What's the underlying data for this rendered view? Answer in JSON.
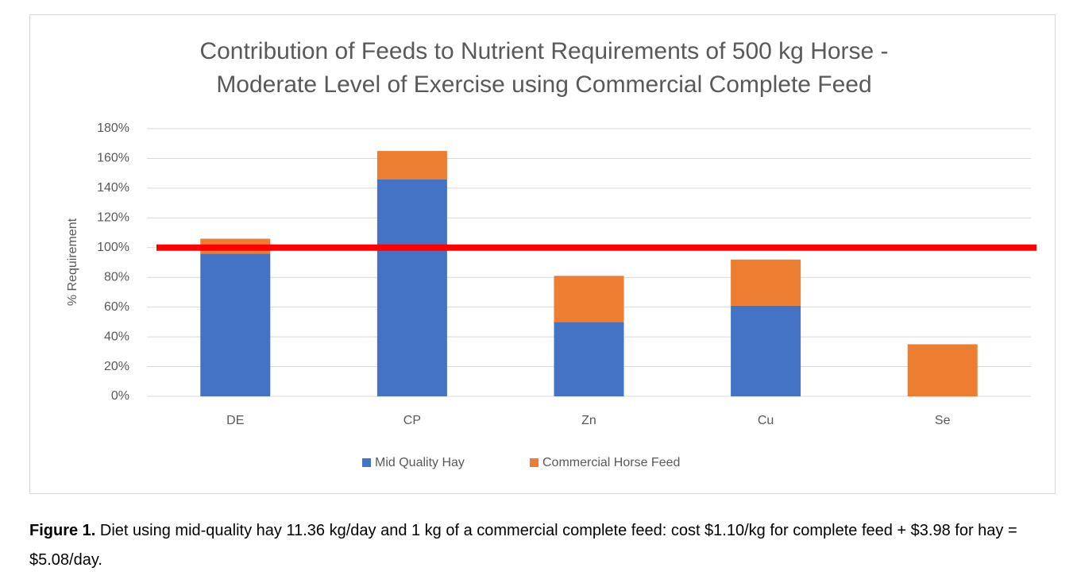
{
  "chart_data": {
    "type": "stacked_bar",
    "title": [
      "Contribution of Feeds to Nutrient Requirements of 500 kg Horse -",
      "Moderate Level of Exercise using Commercial Complete Feed"
    ],
    "y_label": "% Requirement",
    "categories": [
      "DE",
      "CP",
      "Zn",
      "Cu",
      "Se"
    ],
    "series": [
      {
        "name": "Mid Quality Hay",
        "color": "#4472c4",
        "values": [
          96,
          146,
          50,
          61,
          0
        ]
      },
      {
        "name": "Commercial Horse Feed",
        "color": "#ed7d31",
        "values": [
          10,
          19,
          31,
          31,
          35
        ]
      }
    ],
    "ylim": [
      0,
      180
    ],
    "yticks": [
      {
        "value": 0,
        "label": "0%"
      },
      {
        "value": 20,
        "label": "20%"
      },
      {
        "value": 40,
        "label": "40%"
      },
      {
        "value": 60,
        "label": "60%"
      },
      {
        "value": 80,
        "label": "80%"
      },
      {
        "value": 100,
        "label": "100%"
      },
      {
        "value": 120,
        "label": "120%"
      },
      {
        "value": 140,
        "label": "140%"
      },
      {
        "value": 160,
        "label": "160%"
      },
      {
        "value": 180,
        "label": "180%"
      }
    ],
    "grid": true,
    "legend": "bottom",
    "reference_line": {
      "value": 100,
      "color": "#ff0000"
    }
  },
  "caption": {
    "label": "Figure 1.",
    "text": "Diet using mid-quality hay 11.36 kg/day and 1 kg of a commercial complete feed: cost $1.10/kg for complete feed + $3.98 for hay = $5.08/day."
  }
}
